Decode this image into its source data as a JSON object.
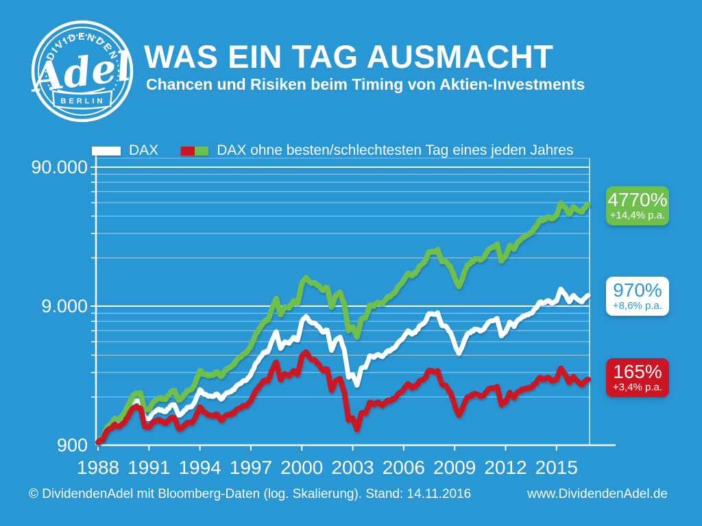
{
  "colors": {
    "blue": "#2997d3",
    "white": "#ffffff",
    "green": "#6fbf4c",
    "red": "#cc1423"
  },
  "header": {
    "title": "WAS EIN TAG AUSMACHT",
    "subtitle": "Chancen und Risiken beim Timing von Aktien-Investments",
    "logo": {
      "arc_top": "DIVIDENDEN",
      "script": "Adel",
      "banner": "BERLIN"
    }
  },
  "legend": {
    "items": [
      {
        "label": "DAX",
        "swatch_colors": [
          "#ffffff"
        ]
      },
      {
        "label": "DAX ohne besten/schlechtesten Tag eines jeden Jahres",
        "swatch_colors": [
          "#cc1423",
          "#6fbf4c"
        ]
      }
    ]
  },
  "annotations": [
    {
      "value": "4770%",
      "pa": "+14,4% p.a.",
      "bg": "#6fbf4c",
      "fg": "#ffffff"
    },
    {
      "value": "970%",
      "pa": "+8,6% p.a.",
      "bg": "#ffffff",
      "fg": "#2997d3"
    },
    {
      "value": "165%",
      "pa": "+3,4% p.a.",
      "bg": "#cc1423",
      "fg": "#ffffff"
    }
  ],
  "footer": {
    "left": "© DividendenAdel mit Bloomberg-Daten (log. Skalierung). Stand: 14.11.2016",
    "right": "www.DividendenAdel.de"
  },
  "chart_data": {
    "type": "line",
    "log_scale": true,
    "x_range": [
      1988,
      2016.95
    ],
    "y_range": [
      900,
      104000
    ],
    "grid": "horizontal-log-minor-and-major",
    "y_ticks": [
      {
        "label": "90.000",
        "value": 90000
      },
      {
        "label": "9.000",
        "value": 9000
      },
      {
        "label": "900",
        "value": 900
      }
    ],
    "x_ticks": [
      {
        "label": "1988",
        "value": 1988
      },
      {
        "label": "1991",
        "value": 1991
      },
      {
        "label": "1994",
        "value": 1994
      },
      {
        "label": "1997",
        "value": 1997
      },
      {
        "label": "2000",
        "value": 2000
      },
      {
        "label": "2003",
        "value": 2003
      },
      {
        "label": "2006",
        "value": 2006
      },
      {
        "label": "2009",
        "value": 2009
      },
      {
        "label": "2012",
        "value": 2012
      },
      {
        "label": "2015",
        "value": 2015
      }
    ],
    "x": [
      1988.0,
      1988.25,
      1988.5,
      1988.75,
      1989.0,
      1989.25,
      1989.5,
      1989.75,
      1990.0,
      1990.25,
      1990.5,
      1990.75,
      1991.0,
      1991.25,
      1991.5,
      1991.75,
      1992.0,
      1992.25,
      1992.5,
      1992.75,
      1993.0,
      1993.25,
      1993.5,
      1993.75,
      1994.0,
      1994.25,
      1994.5,
      1994.75,
      1995.0,
      1995.25,
      1995.5,
      1995.75,
      1996.0,
      1996.25,
      1996.5,
      1996.75,
      1997.0,
      1997.25,
      1997.5,
      1997.75,
      1998.0,
      1998.25,
      1998.5,
      1998.75,
      1999.0,
      1999.25,
      1999.5,
      1999.75,
      2000.0,
      2000.25,
      2000.5,
      2000.75,
      2001.0,
      2001.25,
      2001.5,
      2001.75,
      2002.0,
      2002.25,
      2002.5,
      2002.75,
      2003.0,
      2003.25,
      2003.5,
      2003.75,
      2004.0,
      2004.25,
      2004.5,
      2004.75,
      2005.0,
      2005.25,
      2005.5,
      2005.75,
      2006.0,
      2006.25,
      2006.5,
      2006.75,
      2007.0,
      2007.25,
      2007.5,
      2007.75,
      2008.0,
      2008.25,
      2008.5,
      2008.75,
      2009.0,
      2009.25,
      2009.5,
      2009.75,
      2010.0,
      2010.25,
      2010.5,
      2010.75,
      2011.0,
      2011.25,
      2011.5,
      2011.75,
      2012.0,
      2012.25,
      2012.5,
      2012.75,
      2013.0,
      2013.25,
      2013.5,
      2013.75,
      2014.0,
      2014.25,
      2014.5,
      2014.75,
      2015.0,
      2015.25,
      2015.5,
      2015.75,
      2016.0,
      2016.25,
      2016.5,
      2016.75,
      2016.87
    ],
    "series": [
      {
        "id": "dax",
        "name": "DAX",
        "color": "#ffffff",
        "width": 7,
        "total_return": "970%",
        "per_annum": "+8,6% p.a.",
        "values": [
          950,
          1000,
          1150,
          1230,
          1327,
          1300,
          1400,
          1550,
          1790,
          1900,
          1870,
          1390,
          1398,
          1540,
          1620,
          1610,
          1578,
          1720,
          1760,
          1480,
          1545,
          1690,
          1700,
          1900,
          2267,
          2090,
          2025,
          2012,
          2107,
          1920,
          2090,
          2187,
          2254,
          2460,
          2560,
          2652,
          2889,
          3420,
          3770,
          4170,
          4250,
          5100,
          5900,
          4470,
          5002,
          4860,
          5380,
          5150,
          6958,
          7600,
          6900,
          6800,
          6434,
          5830,
          6060,
          4310,
          5160,
          5360,
          4380,
          2770,
          2893,
          2420,
          3220,
          3260,
          3965,
          3860,
          4050,
          3890,
          4256,
          4350,
          4590,
          5040,
          5408,
          5970,
          5680,
          6000,
          6597,
          6900,
          8000,
          7860,
          8067,
          6530,
          6420,
          5830,
          4810,
          4080,
          4810,
          5680,
          5957,
          6150,
          5970,
          6230,
          6914,
          7040,
          7380,
          5500,
          5898,
          6950,
          6420,
          7220,
          7612,
          7800,
          7960,
          8590,
          9552,
          9560,
          9830,
          9470,
          9806,
          11970,
          10950,
          9660,
          10743,
          9970,
          9680,
          10510,
          10700
        ]
      },
      {
        "id": "dax-ohne-schlechtesten-tag",
        "name": "DAX ohne schlechtesten Tag eines jeden Jahres",
        "color": "#6fbf4c",
        "width": 8,
        "derived_from": "DAX",
        "relative_factor_per_year": 1.0537,
        "total_return": "4770%",
        "per_annum": "+14,4% p.a."
      },
      {
        "id": "dax-ohne-besten-tag",
        "name": "DAX ohne besten Tag eines jeden Jahres",
        "color": "#cc1423",
        "width": 8,
        "derived_from": "DAX",
        "relative_factor_per_year": 0.953,
        "total_return": "165%",
        "per_annum": "+3,4% p.a."
      }
    ]
  }
}
